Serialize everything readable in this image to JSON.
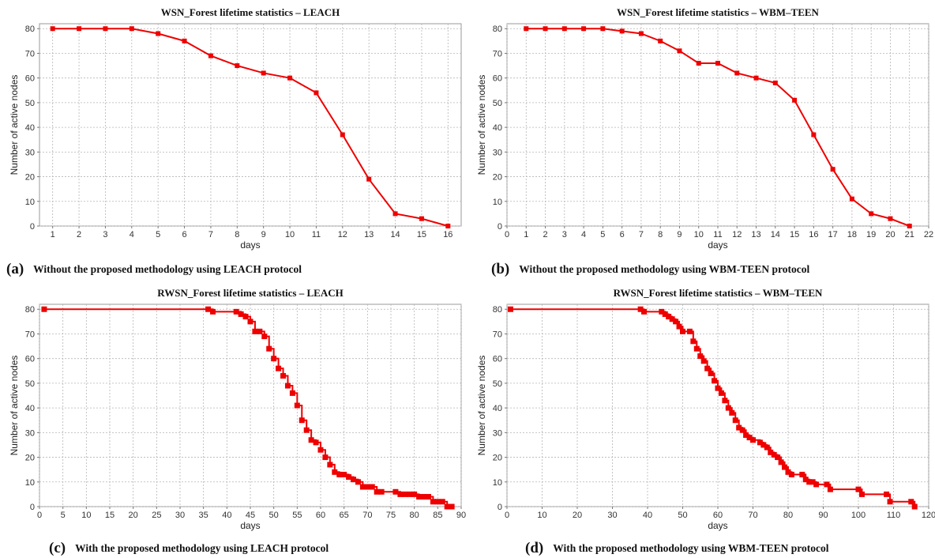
{
  "chart_data": [
    {
      "type": "line",
      "label": "(a)",
      "caption": "Without the proposed methodology using LEACH protocol",
      "title": "WSN_Forest lifetime statistics  –  LEACH",
      "xlabel": "days",
      "ylabel": "Number of active nodes",
      "xlim": [
        0.5,
        16.5
      ],
      "ylim": [
        0,
        82
      ],
      "xticks": [
        1,
        2,
        3,
        4,
        5,
        6,
        7,
        8,
        9,
        10,
        11,
        12,
        13,
        14,
        15,
        16
      ],
      "yticks": [
        0,
        10,
        20,
        30,
        40,
        50,
        60,
        70,
        80
      ],
      "grid": true,
      "color": "#ee0000",
      "step": false,
      "x": [
        1,
        2,
        3,
        4,
        5,
        6,
        7,
        8,
        9,
        10,
        11,
        12,
        13,
        14,
        15,
        16
      ],
      "y": [
        80,
        80,
        80,
        80,
        78,
        75,
        69,
        65,
        62,
        60,
        54,
        37,
        19,
        5,
        3,
        0
      ]
    },
    {
      "type": "line",
      "label": "(b)",
      "caption": "Without the proposed methodology using WBM-TEEN protocol",
      "title": "WSN_Forest lifetime statistics  –  WBM–TEEN",
      "xlabel": "days",
      "ylabel": "Number of active nodes",
      "xlim": [
        0,
        22
      ],
      "ylim": [
        0,
        82
      ],
      "xticks": [
        0,
        1,
        2,
        3,
        4,
        5,
        6,
        7,
        8,
        9,
        10,
        11,
        12,
        13,
        14,
        15,
        16,
        17,
        18,
        19,
        20,
        21,
        22
      ],
      "yticks": [
        0,
        10,
        20,
        30,
        40,
        50,
        60,
        70,
        80
      ],
      "grid": true,
      "color": "#ee0000",
      "step": false,
      "x": [
        1,
        2,
        3,
        4,
        5,
        6,
        7,
        8,
        9,
        10,
        11,
        12,
        13,
        14,
        15,
        16,
        17,
        18,
        19,
        20,
        21
      ],
      "y": [
        80,
        80,
        80,
        80,
        80,
        79,
        78,
        75,
        71,
        66,
        66,
        62,
        60,
        58,
        51,
        37,
        23,
        11,
        5,
        3,
        0
      ]
    },
    {
      "type": "line",
      "label": "(c)",
      "caption": "With the proposed methodology using LEACH protocol",
      "title": "RWSN_Forest lifetime statistics  –  LEACH",
      "xlabel": "days",
      "ylabel": "Number of active nodes",
      "xlim": [
        0,
        90
      ],
      "ylim": [
        0,
        82
      ],
      "xticks": [
        0,
        5,
        10,
        15,
        20,
        25,
        30,
        35,
        40,
        45,
        50,
        55,
        60,
        65,
        70,
        75,
        80,
        85,
        90
      ],
      "yticks": [
        0,
        10,
        20,
        30,
        40,
        50,
        60,
        70,
        80
      ],
      "grid": true,
      "color": "#ee0000",
      "step": true,
      "x": [
        1,
        36,
        37,
        42,
        43,
        44,
        45,
        46,
        47,
        48,
        49,
        50,
        51,
        52,
        53,
        54,
        55,
        56,
        57,
        58,
        59,
        60,
        61,
        62,
        63,
        64,
        65,
        66,
        67,
        68,
        69,
        70,
        71,
        72,
        73,
        76,
        77,
        78,
        79,
        80,
        81,
        82,
        83,
        84,
        85,
        86,
        87,
        88
      ],
      "y": [
        80,
        80,
        79,
        79,
        78,
        77,
        75,
        71,
        71,
        69,
        64,
        60,
        56,
        53,
        49,
        46,
        41,
        35,
        31,
        27,
        26,
        23,
        20,
        17,
        14,
        13,
        13,
        12,
        11,
        10,
        8,
        8,
        8,
        6,
        6,
        6,
        5,
        5,
        5,
        5,
        4,
        4,
        4,
        2,
        2,
        2,
        0,
        0
      ]
    },
    {
      "type": "line",
      "label": "(d)",
      "caption": "With the proposed methodology using WBM-TEEN protocol",
      "title": "RWSN_Forest lifetime statistics  –  WBM–TEEN",
      "xlabel": "days",
      "ylabel": "Number of active nodes",
      "xlim": [
        0,
        120
      ],
      "ylim": [
        0,
        82
      ],
      "xticks": [
        0,
        10,
        20,
        30,
        40,
        50,
        60,
        70,
        80,
        90,
        100,
        110,
        120
      ],
      "yticks": [
        0,
        10,
        20,
        30,
        40,
        50,
        60,
        70,
        80
      ],
      "grid": true,
      "color": "#ee0000",
      "step": true,
      "x": [
        1,
        38,
        39,
        44,
        45,
        46,
        47,
        48,
        49,
        50,
        52,
        53,
        54,
        55,
        56,
        57,
        58,
        59,
        60,
        61,
        62,
        63,
        64,
        65,
        66,
        67,
        68,
        69,
        70,
        72,
        73,
        74,
        75,
        76,
        77,
        78,
        79,
        80,
        81,
        84,
        85,
        86,
        87,
        88,
        91,
        92,
        100,
        101,
        108,
        109,
        115,
        116
      ],
      "y": [
        80,
        80,
        79,
        79,
        78,
        77,
        76,
        75,
        73,
        71,
        71,
        67,
        64,
        61,
        59,
        56,
        54,
        51,
        48,
        46,
        43,
        40,
        38,
        35,
        32,
        31,
        29,
        28,
        27,
        26,
        25,
        24,
        22,
        21,
        20,
        18,
        16,
        14,
        13,
        13,
        11,
        10,
        10,
        9,
        9,
        7,
        7,
        5,
        5,
        2,
        2,
        0
      ]
    }
  ]
}
